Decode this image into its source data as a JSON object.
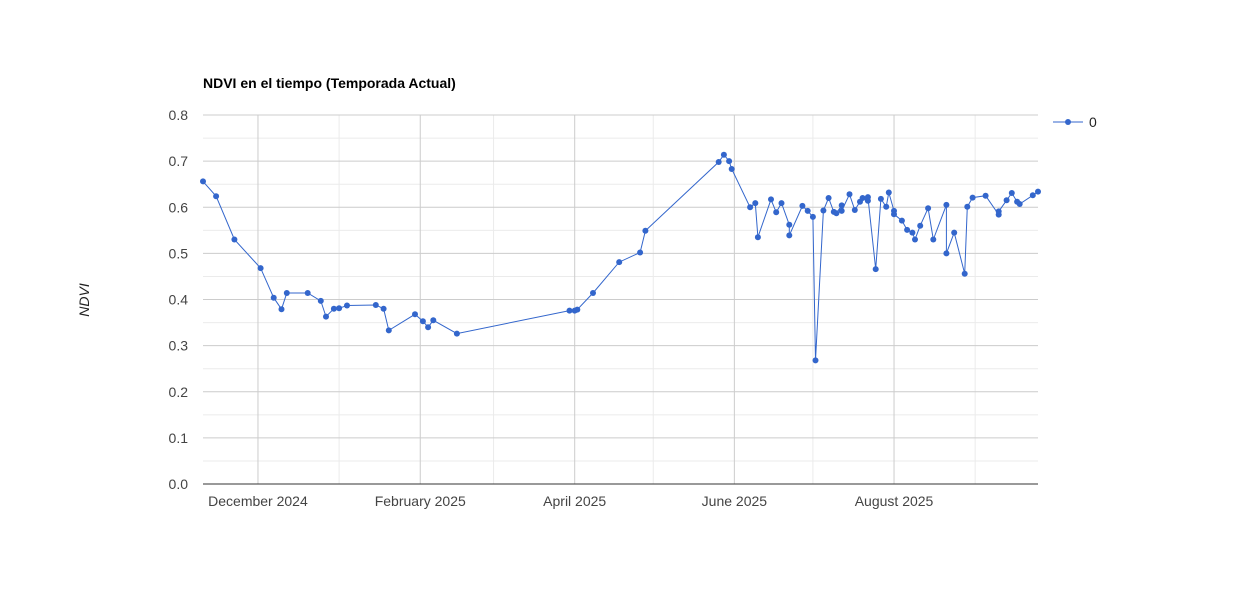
{
  "chart_data": {
    "type": "line",
    "title": "NDVI en el tiempo (Temporada Actual)",
    "xlabel": "",
    "ylabel": "NDVI",
    "ylim": [
      0,
      0.8
    ],
    "yticks": [
      "0.0",
      "0.1",
      "0.2",
      "0.3",
      "0.4",
      "0.5",
      "0.6",
      "0.7",
      "0.8"
    ],
    "xlim": [
      "2024-11-10",
      "2025-09-25"
    ],
    "xticks": [
      {
        "date": "2024-12-01",
        "label": "December 2024"
      },
      {
        "date": "2025-02-01",
        "label": "February 2025"
      },
      {
        "date": "2025-04-01",
        "label": "April 2025"
      },
      {
        "date": "2025-06-01",
        "label": "June 2025"
      },
      {
        "date": "2025-08-01",
        "label": "August 2025"
      }
    ],
    "minor_xgrid": [
      "2025-01-01",
      "2025-03-01",
      "2025-05-01",
      "2025-07-01",
      "2025-09-01"
    ],
    "grid": true,
    "legend": "right",
    "color": "#3366cc",
    "series": [
      {
        "name": "0",
        "points": [
          [
            "2024-11-10",
            0.656
          ],
          [
            "2024-11-15",
            0.624
          ],
          [
            "2024-11-22",
            0.53
          ],
          [
            "2024-12-02",
            0.468
          ],
          [
            "2024-12-07",
            0.404
          ],
          [
            "2024-12-10",
            0.379
          ],
          [
            "2024-12-12",
            0.414
          ],
          [
            "2024-12-20",
            0.414
          ],
          [
            "2024-12-25",
            0.397
          ],
          [
            "2024-12-27",
            0.363
          ],
          [
            "2024-12-30",
            0.38
          ],
          [
            "2025-01-01",
            0.381
          ],
          [
            "2025-01-04",
            0.387
          ],
          [
            "2025-01-15",
            0.388
          ],
          [
            "2025-01-18",
            0.38
          ],
          [
            "2025-01-20",
            0.333
          ],
          [
            "2025-01-30",
            0.368
          ],
          [
            "2025-02-02",
            0.353
          ],
          [
            "2025-02-04",
            0.34
          ],
          [
            "2025-02-06",
            0.355
          ],
          [
            "2025-02-15",
            0.326
          ],
          [
            "2025-03-30",
            0.376
          ],
          [
            "2025-04-01",
            0.376
          ],
          [
            "2025-04-02",
            0.378
          ],
          [
            "2025-04-08",
            0.414
          ],
          [
            "2025-04-18",
            0.481
          ],
          [
            "2025-04-26",
            0.502
          ],
          [
            "2025-04-28",
            0.549
          ],
          [
            "2025-05-26",
            0.698
          ],
          [
            "2025-05-28",
            0.714
          ],
          [
            "2025-05-30",
            0.7
          ],
          [
            "2025-05-31",
            0.683
          ],
          [
            "2025-06-07",
            0.6
          ],
          [
            "2025-06-09",
            0.609
          ],
          [
            "2025-06-10",
            0.535
          ],
          [
            "2025-06-15",
            0.617
          ],
          [
            "2025-06-17",
            0.589
          ],
          [
            "2025-06-19",
            0.609
          ],
          [
            "2025-06-22",
            0.562
          ],
          [
            "2025-06-22",
            0.539
          ],
          [
            "2025-06-27",
            0.603
          ],
          [
            "2025-06-29",
            0.592
          ],
          [
            "2025-07-01",
            0.579
          ],
          [
            "2025-07-02",
            0.268
          ],
          [
            "2025-07-05",
            0.593
          ],
          [
            "2025-07-07",
            0.62
          ],
          [
            "2025-07-09",
            0.59
          ],
          [
            "2025-07-10",
            0.587
          ],
          [
            "2025-07-12",
            0.604
          ],
          [
            "2025-07-12",
            0.592
          ],
          [
            "2025-07-15",
            0.628
          ],
          [
            "2025-07-17",
            0.594
          ],
          [
            "2025-07-19",
            0.612
          ],
          [
            "2025-07-20",
            0.62
          ],
          [
            "2025-07-22",
            0.614
          ],
          [
            "2025-07-22",
            0.622
          ],
          [
            "2025-07-25",
            0.466
          ],
          [
            "2025-07-27",
            0.618
          ],
          [
            "2025-07-29",
            0.601
          ],
          [
            "2025-07-30",
            0.632
          ],
          [
            "2025-08-01",
            0.592
          ],
          [
            "2025-08-01",
            0.585
          ],
          [
            "2025-08-04",
            0.571
          ],
          [
            "2025-08-06",
            0.551
          ],
          [
            "2025-08-08",
            0.545
          ],
          [
            "2025-08-09",
            0.53
          ],
          [
            "2025-08-11",
            0.56
          ],
          [
            "2025-08-14",
            0.598
          ],
          [
            "2025-08-16",
            0.53
          ],
          [
            "2025-08-21",
            0.605
          ],
          [
            "2025-08-21",
            0.5
          ],
          [
            "2025-08-24",
            0.545
          ],
          [
            "2025-08-28",
            0.456
          ],
          [
            "2025-08-29",
            0.601
          ],
          [
            "2025-08-31",
            0.621
          ],
          [
            "2025-09-05",
            0.625
          ],
          [
            "2025-09-10",
            0.584
          ],
          [
            "2025-09-10",
            0.591
          ],
          [
            "2025-09-13",
            0.615
          ],
          [
            "2025-09-15",
            0.631
          ],
          [
            "2025-09-17",
            0.612
          ],
          [
            "2025-09-18",
            0.607
          ],
          [
            "2025-09-23",
            0.626
          ],
          [
            "2025-09-25",
            0.634
          ]
        ]
      }
    ]
  }
}
